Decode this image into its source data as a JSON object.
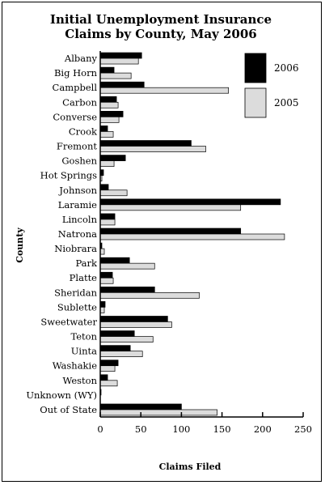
{
  "chart_data": {
    "type": "bar",
    "orientation": "horizontal",
    "title_lines": [
      "Initial Unemployment Insurance",
      "Claims by County, May 2006"
    ],
    "xlabel": "Claims Filed",
    "ylabel": "County",
    "xlim": [
      0,
      250
    ],
    "xticks": [
      0,
      50,
      100,
      150,
      200,
      250
    ],
    "grid": false,
    "legend_position": "top-right",
    "categories": [
      "Albany",
      "Big Horn",
      "Campbell",
      "Carbon",
      "Converse",
      "Crook",
      "Fremont",
      "Goshen",
      "Hot Springs",
      "Johnson",
      "Laramie",
      "Lincoln",
      "Natrona",
      "Niobrara",
      "Park",
      "Platte",
      "Sheridan",
      "Sublette",
      "Sweetwater",
      "Teton",
      "Uinta",
      "Washakie",
      "Weston",
      "Unknown (WY)",
      "Out of State"
    ],
    "series": [
      {
        "name": "2006",
        "color": "#000000",
        "values": [
          51,
          17,
          54,
          20,
          28,
          9,
          112,
          31,
          4,
          10,
          222,
          18,
          173,
          2,
          36,
          15,
          67,
          6,
          83,
          42,
          37,
          22,
          9,
          1,
          100
        ]
      },
      {
        "name": "2005",
        "color": "#dcdcdc",
        "values": [
          47,
          38,
          158,
          22,
          23,
          16,
          130,
          17,
          2,
          33,
          173,
          18,
          227,
          5,
          67,
          16,
          122,
          5,
          88,
          65,
          52,
          18,
          21,
          0,
          144
        ]
      }
    ]
  }
}
